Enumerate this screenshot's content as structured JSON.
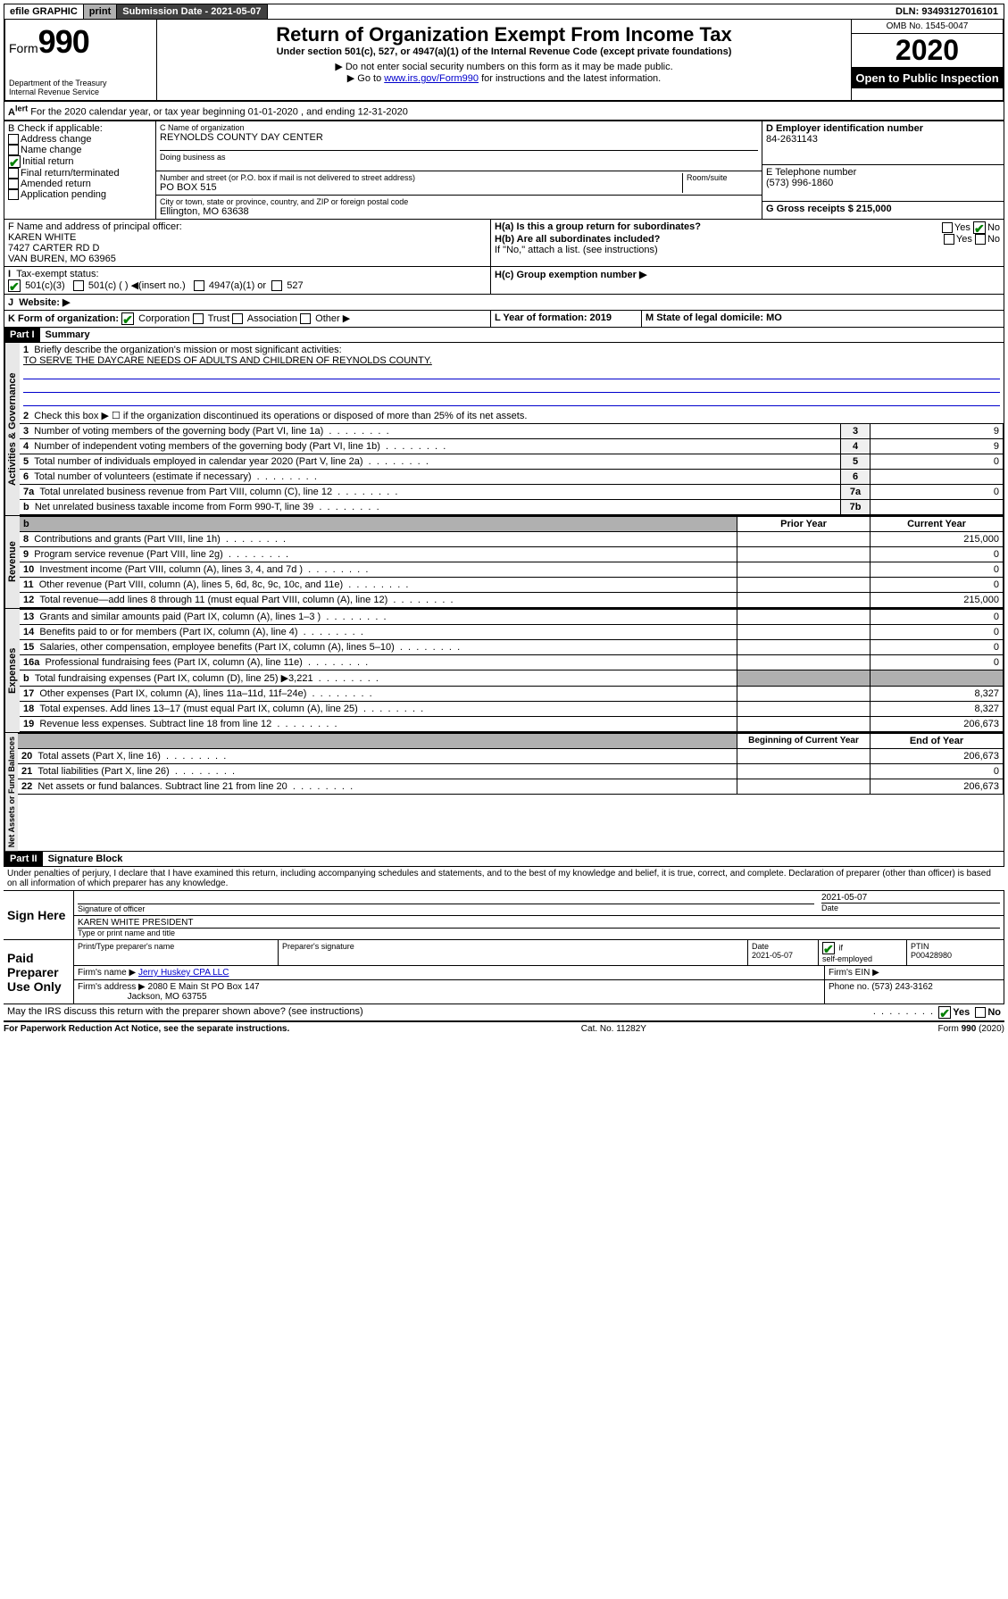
{
  "top": {
    "efile": "efile GRAPHIC",
    "print": "print",
    "sub_label": "Submission Date - 2021-05-07",
    "dln": "DLN: 93493127016101"
  },
  "header": {
    "form": "Form",
    "num": "990",
    "dept": "Department of the Treasury",
    "irs": "Internal Revenue Service",
    "title": "Return of Organization Exempt From Income Tax",
    "sub1": "Under section 501(c), 527, or 4947(a)(1) of the Internal Revenue Code (except private foundations)",
    "sub2": "▶ Do not enter social security numbers on this form as it may be made public.",
    "sub3_a": "▶ Go to ",
    "sub3_link": "www.irs.gov/Form990",
    "sub3_b": " for instructions and the latest information.",
    "omb": "OMB No. 1545-0047",
    "year": "2020",
    "open": "Open to Public Inspection"
  },
  "a": {
    "text": "For the 2020 calendar year, or tax year beginning 01-01-2020    , and ending 12-31-2020"
  },
  "b": {
    "label": "B Check if applicable:",
    "opts": [
      "Address change",
      "Name change",
      "Initial return",
      "Final return/terminated",
      "Amended return",
      "Application pending"
    ],
    "c_label": "C Name of organization",
    "c_name": "REYNOLDS COUNTY DAY CENTER",
    "dba": "Doing business as",
    "addr_label": "Number and street (or P.O. box if mail is not delivered to street address)",
    "room": "Room/suite",
    "addr": "PO BOX 515",
    "city_label": "City or town, state or province, country, and ZIP or foreign postal code",
    "city": "Ellington, MO  63638",
    "d_label": "D Employer identification number",
    "d_val": "84-2631143",
    "e_label": "E Telephone number",
    "e_val": "(573) 996-1860",
    "g_label": "G Gross receipts $ 215,000"
  },
  "f": {
    "label": "F  Name and address of principal officer:",
    "name": "KAREN WHITE",
    "addr1": "7427 CARTER RD D",
    "addr2": "VAN BUREN, MO  63965"
  },
  "h": {
    "a_label": "H(a)  Is this a group return for subordinates?",
    "b_label": "H(b)  Are all subordinates included?",
    "b_note": "If \"No,\" attach a list. (see instructions)",
    "c_label": "H(c)  Group exemption number ▶",
    "yes": "Yes",
    "no": "No"
  },
  "i": {
    "label": "Tax-exempt status:",
    "o1": "501(c)(3)",
    "o2": "501(c) (  ) ◀(insert no.)",
    "o3": "4947(a)(1) or",
    "o4": "527"
  },
  "j": {
    "label": "Website: ▶"
  },
  "k": {
    "label": "K Form of organization:",
    "corp": "Corporation",
    "trust": "Trust",
    "assoc": "Association",
    "other": "Other ▶"
  },
  "l": {
    "label": "L Year of formation: 2019"
  },
  "m": {
    "label": "M State of legal domicile: MO"
  },
  "part1": {
    "hdr": "Part I",
    "title": "Summary",
    "l1": "Briefly describe the organization's mission or most significant activities:",
    "l1v": "TO SERVE THE DAYCARE NEEDS OF ADULTS AND CHILDREN OF REYNOLDS COUNTY.",
    "l2": "Check this box ▶ ☐  if the organization discontinued its operations or disposed of more than 25% of its net assets.",
    "rows_gov": [
      {
        "n": "3",
        "t": "Number of voting members of the governing body (Part VI, line 1a)",
        "box": "3",
        "v": "9"
      },
      {
        "n": "4",
        "t": "Number of independent voting members of the governing body (Part VI, line 1b)",
        "box": "4",
        "v": "9"
      },
      {
        "n": "5",
        "t": "Total number of individuals employed in calendar year 2020 (Part V, line 2a)",
        "box": "5",
        "v": "0"
      },
      {
        "n": "6",
        "t": "Total number of volunteers (estimate if necessary)",
        "box": "6",
        "v": ""
      },
      {
        "n": "7a",
        "t": "Total unrelated business revenue from Part VIII, column (C), line 12",
        "box": "7a",
        "v": "0"
      },
      {
        "n": "b",
        "t": "Net unrelated business taxable income from Form 990-T, line 39",
        "box": "7b",
        "v": ""
      }
    ],
    "py": "Prior Year",
    "cy": "Current Year",
    "rows_rev": [
      {
        "n": "8",
        "t": "Contributions and grants (Part VIII, line 1h)",
        "p": "",
        "c": "215,000"
      },
      {
        "n": "9",
        "t": "Program service revenue (Part VIII, line 2g)",
        "p": "",
        "c": "0"
      },
      {
        "n": "10",
        "t": "Investment income (Part VIII, column (A), lines 3, 4, and 7d )",
        "p": "",
        "c": "0"
      },
      {
        "n": "11",
        "t": "Other revenue (Part VIII, column (A), lines 5, 6d, 8c, 9c, 10c, and 11e)",
        "p": "",
        "c": "0"
      },
      {
        "n": "12",
        "t": "Total revenue—add lines 8 through 11 (must equal Part VIII, column (A), line 12)",
        "p": "",
        "c": "215,000"
      }
    ],
    "rows_exp": [
      {
        "n": "13",
        "t": "Grants and similar amounts paid (Part IX, column (A), lines 1–3 )",
        "p": "",
        "c": "0"
      },
      {
        "n": "14",
        "t": "Benefits paid to or for members (Part IX, column (A), line 4)",
        "p": "",
        "c": "0"
      },
      {
        "n": "15",
        "t": "Salaries, other compensation, employee benefits (Part IX, column (A), lines 5–10)",
        "p": "",
        "c": "0"
      },
      {
        "n": "16a",
        "t": "Professional fundraising fees (Part IX, column (A), line 11e)",
        "p": "",
        "c": "0"
      },
      {
        "n": "b",
        "t": "Total fundraising expenses (Part IX, column (D), line 25) ▶3,221",
        "p": "shade",
        "c": "shade"
      },
      {
        "n": "17",
        "t": "Other expenses (Part IX, column (A), lines 11a–11d, 11f–24e)",
        "p": "",
        "c": "8,327"
      },
      {
        "n": "18",
        "t": "Total expenses. Add lines 13–17 (must equal Part IX, column (A), line 25)",
        "p": "",
        "c": "8,327"
      },
      {
        "n": "19",
        "t": "Revenue less expenses. Subtract line 18 from line 12",
        "p": "",
        "c": "206,673"
      }
    ],
    "boy": "Beginning of Current Year",
    "eoy": "End of Year",
    "rows_net": [
      {
        "n": "20",
        "t": "Total assets (Part X, line 16)",
        "p": "",
        "c": "206,673"
      },
      {
        "n": "21",
        "t": "Total liabilities (Part X, line 26)",
        "p": "",
        "c": "0"
      },
      {
        "n": "22",
        "t": "Net assets or fund balances. Subtract line 21 from line 20",
        "p": "",
        "c": "206,673"
      }
    ]
  },
  "part2": {
    "hdr": "Part II",
    "title": "Signature Block",
    "decl": "Under penalties of perjury, I declare that I have examined this return, including accompanying schedules and statements, and to the best of my knowledge and belief, it is true, correct, and complete. Declaration of preparer (other than officer) is based on all information of which preparer has any knowledge.",
    "sign_here": "Sign Here",
    "sig_officer": "Signature of officer",
    "sig_date": "2021-05-07",
    "date_lbl": "Date",
    "name_title": "KAREN WHITE PRESIDENT",
    "type_name": "Type or print name and title",
    "paid": "Paid Preparer Use Only",
    "prep_name_lbl": "Print/Type preparer's name",
    "prep_sig_lbl": "Preparer's signature",
    "prep_date": "2021-05-07",
    "check_self": "Check ☑ if self-employed",
    "ptin_lbl": "PTIN",
    "ptin": "P00428980",
    "firm_name_lbl": "Firm's name    ▶",
    "firm_name": "Jerry Huskey CPA LLC",
    "firm_ein": "Firm's EIN ▶",
    "firm_addr_lbl": "Firm's address ▶",
    "firm_addr1": "2080 E Main St PO Box 147",
    "firm_addr2": "Jackson, MO  63755",
    "firm_phone": "Phone no. (573) 243-3162",
    "discuss": "May the IRS discuss this return with the preparer shown above? (see instructions)"
  },
  "footer": {
    "paperwork": "For Paperwork Reduction Act Notice, see the separate instructions.",
    "cat": "Cat. No. 11282Y",
    "form": "Form 990 (2020)"
  },
  "sidebars": {
    "gov": "Activities & Governance",
    "rev": "Revenue",
    "exp": "Expenses",
    "net": "Net Assets or Fund Balances"
  }
}
